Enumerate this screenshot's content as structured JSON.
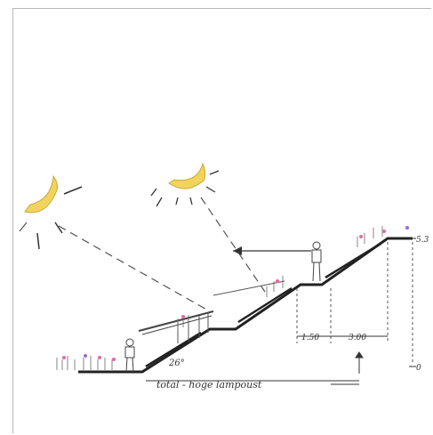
{
  "annotations": {
    "angle": "26°",
    "dim_1": "1.50",
    "dim_2": "3.00",
    "top_level": "5.3",
    "base_level": "0",
    "caption": "total - hoge lampoust"
  },
  "colors": {
    "sun": "#f2d45c",
    "sun_outline": "#c9a93a",
    "line": "#222222",
    "flower_pink": "#e06aa8",
    "flower_purple": "#9a6ad0"
  }
}
